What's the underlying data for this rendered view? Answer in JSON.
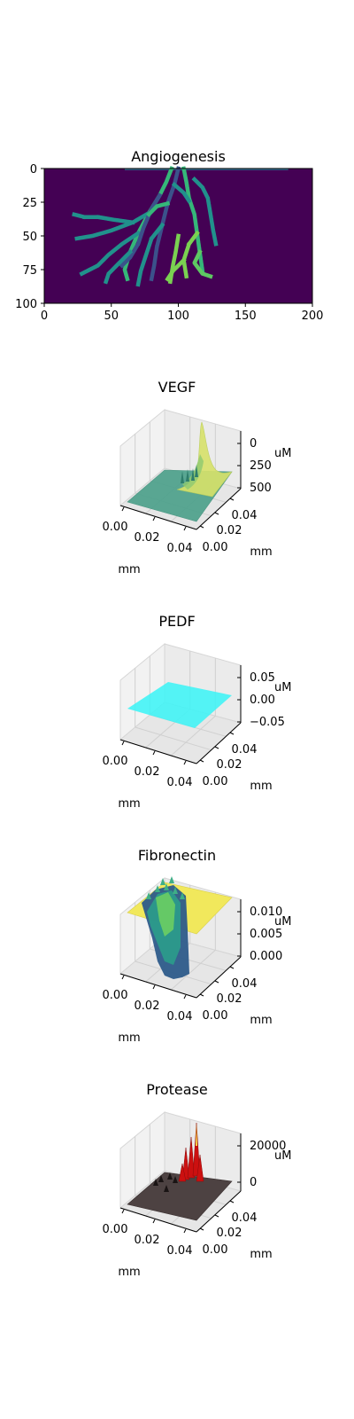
{
  "chart_data": [
    {
      "type": "heatmap",
      "title": "Angiogenesis",
      "x_ticks": [
        "0",
        "50",
        "100",
        "150",
        "200"
      ],
      "y_ticks": [
        "0",
        "25",
        "50",
        "75",
        "100"
      ],
      "xlim": [
        0,
        200
      ],
      "ylim": [
        100,
        0
      ],
      "colormap": "viridis",
      "background_color": "#440154",
      "vessel_colors": [
        "#21918c",
        "#3b528b",
        "#5ec962",
        "#35b779",
        "#7ad151"
      ],
      "vessels": [
        {
          "color": "#35b779",
          "points": [
            [
              95,
              0
            ],
            [
              91,
              10
            ],
            [
              86,
              20
            ],
            [
              78,
              33
            ],
            [
              70,
              48
            ],
            [
              64,
              62
            ],
            [
              60,
              75
            ],
            [
              62,
              82
            ]
          ]
        },
        {
          "color": "#21918c",
          "points": [
            [
              78,
              33
            ],
            [
              66,
              40
            ],
            [
              50,
              46
            ],
            [
              36,
              50
            ],
            [
              24,
              52
            ]
          ]
        },
        {
          "color": "#21918c",
          "points": [
            [
              66,
              40
            ],
            [
              52,
              38
            ],
            [
              40,
              36
            ],
            [
              30,
              36
            ],
            [
              22,
              34
            ]
          ]
        },
        {
          "color": "#21918c",
          "points": [
            [
              70,
              48
            ],
            [
              58,
              56
            ],
            [
              48,
              64
            ],
            [
              40,
              72
            ],
            [
              28,
              78
            ]
          ]
        },
        {
          "color": "#3b528b",
          "points": [
            [
              86,
              20
            ],
            [
              80,
              30
            ],
            [
              74,
              44
            ],
            [
              70,
              56
            ],
            [
              64,
              66
            ],
            [
              58,
              72
            ]
          ]
        },
        {
          "color": "#21918c",
          "points": [
            [
              64,
              62
            ],
            [
              56,
              70
            ],
            [
              48,
              78
            ],
            [
              46,
              84
            ]
          ]
        },
        {
          "color": "#3b528b",
          "points": [
            [
              100,
              0
            ],
            [
              97,
              12
            ],
            [
              92,
              26
            ],
            [
              88,
              42
            ],
            [
              84,
              58
            ],
            [
              82,
              72
            ],
            [
              80,
              82
            ]
          ]
        },
        {
          "color": "#21918c",
          "points": [
            [
              88,
              42
            ],
            [
              80,
              52
            ],
            [
              76,
              64
            ],
            [
              72,
              76
            ],
            [
              70,
              86
            ]
          ]
        },
        {
          "color": "#35b779",
          "points": [
            [
              104,
              0
            ],
            [
              106,
              10
            ],
            [
              108,
              22
            ],
            [
              112,
              34
            ],
            [
              114,
              48
            ],
            [
              116,
              62
            ],
            [
              118,
              76
            ]
          ]
        },
        {
          "color": "#21918c",
          "points": [
            [
              112,
              8
            ],
            [
              118,
              14
            ],
            [
              122,
              22
            ],
            [
              124,
              34
            ],
            [
              126,
              46
            ],
            [
              128,
              56
            ]
          ]
        },
        {
          "color": "#7ad151",
          "points": [
            [
              100,
              50
            ],
            [
              98,
              62
            ],
            [
              96,
              72
            ],
            [
              94,
              84
            ]
          ]
        },
        {
          "color": "#7ad151",
          "points": [
            [
              114,
              48
            ],
            [
              108,
              56
            ],
            [
              104,
              68
            ],
            [
              106,
              80
            ]
          ]
        },
        {
          "color": "#7ad151",
          "points": [
            [
              104,
              68
            ],
            [
              96,
              76
            ],
            [
              92,
              82
            ]
          ]
        },
        {
          "color": "#5ec962",
          "points": [
            [
              116,
              62
            ],
            [
              112,
              70
            ],
            [
              118,
              78
            ],
            [
              124,
              80
            ]
          ]
        },
        {
          "color": "#35b779",
          "points": [
            [
              92,
              26
            ],
            [
              84,
              28
            ],
            [
              78,
              34
            ]
          ]
        },
        {
          "color": "#21918c",
          "points": [
            [
              97,
              12
            ],
            [
              104,
              18
            ],
            [
              108,
              24
            ]
          ]
        }
      ],
      "top_line_color": "#2c728e"
    },
    {
      "type": "surface",
      "title": "VEGF",
      "x_ticks": [
        "0.00",
        "0.02",
        "0.04"
      ],
      "y_ticks": [
        "0.00",
        "0.02",
        "0.04"
      ],
      "z_ticks": [
        "0",
        "250",
        "500"
      ],
      "x_unit": "mm",
      "y_unit": "mm",
      "z_unit": "uM",
      "zlim": [
        0,
        600
      ],
      "surface_color": "#4aa08a",
      "peak_color": "#d8e26a"
    },
    {
      "type": "surface",
      "title": "PEDF",
      "x_ticks": [
        "0.00",
        "0.02",
        "0.04"
      ],
      "y_ticks": [
        "0.00",
        "0.02",
        "0.04"
      ],
      "z_ticks": [
        "0.05",
        "0.00",
        "−0.05"
      ],
      "x_unit": "mm",
      "y_unit": "mm",
      "z_unit": "uM",
      "zlim": [
        -0.05,
        0.05
      ],
      "surface_color": "#3ef4f6"
    },
    {
      "type": "surface",
      "title": "Fibronectin",
      "x_ticks": [
        "0.00",
        "0.02",
        "0.04"
      ],
      "y_ticks": [
        "0.00",
        "0.02",
        "0.04"
      ],
      "z_ticks": [
        "0.010",
        "0.005",
        "0.000"
      ],
      "x_unit": "mm",
      "y_unit": "mm",
      "z_unit": "uM",
      "zlim": [
        0,
        0.01
      ],
      "surface_color": "#f1e85c",
      "low_color": "#2d5b8a"
    },
    {
      "type": "surface",
      "title": "Protease",
      "x_ticks": [
        "0.00",
        "0.02",
        "0.04"
      ],
      "y_ticks": [
        "0.00",
        "0.02",
        "0.04"
      ],
      "z_ticks": [
        "20000",
        "0"
      ],
      "x_unit": "mm",
      "y_unit": "mm",
      "z_unit": "uM",
      "zlim": [
        0,
        30000
      ],
      "surface_color": "#4d4242",
      "peak_color": "#cc1010"
    }
  ]
}
